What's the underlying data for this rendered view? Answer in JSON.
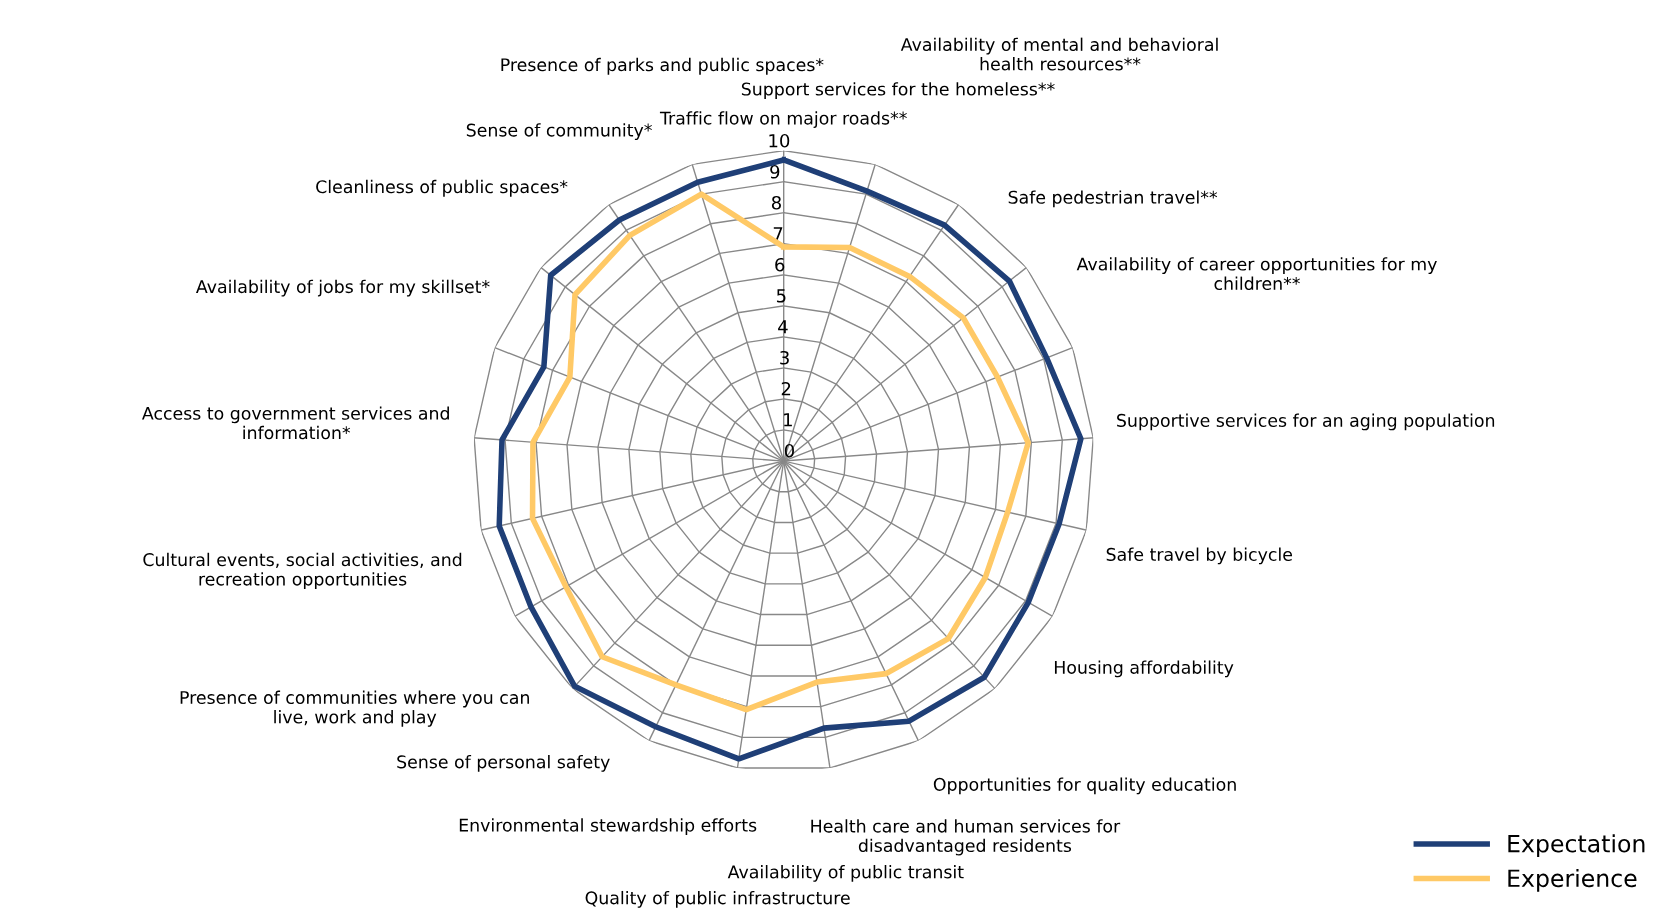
{
  "chart_data": {
    "type": "radar",
    "categories": [
      "Traffic flow on major roads**",
      "Support services for the homeless**",
      "Availability of mental and behavioral\nhealth resources**",
      "Safe pedestrian travel**",
      "Availability of career opportunities for my\nchildren**",
      "Supportive services for an aging population",
      "Safe travel by bicycle",
      "Housing affordability",
      "Opportunities for quality education",
      "Health care and human services for\ndisadvantaged residents",
      "Availability of public transit",
      "Quality of public infrastructure",
      "Environmental stewardship efforts",
      "Sense of personal safety",
      "Presence of communities where you can\nlive, work and play",
      "Cultural events, social activities, and\nrecreation opportunities",
      "Access to government services and\ninformation*",
      "Availability of jobs for my skillset*",
      "Cleanliness of public spaces*",
      "Sense of community*",
      "Presence of parks and public spaces*"
    ],
    "series": [
      {
        "name": "Expectation",
        "color": "#1f3f77",
        "values": [
          9.7,
          9.1,
          9.2,
          9.3,
          9.1,
          9.6,
          9.1,
          9.1,
          9.5,
          9.3,
          8.7,
          9.7,
          9.5,
          9.9,
          9.4,
          9.4,
          9.1,
          8.3,
          9.6,
          9.4,
          9.4
        ]
      },
      {
        "name": "Experience",
        "color": "#ffc966",
        "values": [
          6.9,
          7.2,
          7.2,
          7.4,
          7.4,
          7.9,
          7.4,
          7.5,
          7.8,
          7.6,
          7.2,
          8.1,
          8.0,
          8.6,
          8.1,
          8.3,
          8.1,
          7.4,
          8.6,
          8.8,
          9.0
        ]
      }
    ],
    "ylim": [
      0,
      10
    ],
    "yticks": [
      0,
      1,
      2,
      3,
      4,
      5,
      6,
      7,
      8,
      9,
      10
    ],
    "grid": true,
    "legend": "bottom right",
    "marker": "none",
    "line_style": "solid"
  }
}
